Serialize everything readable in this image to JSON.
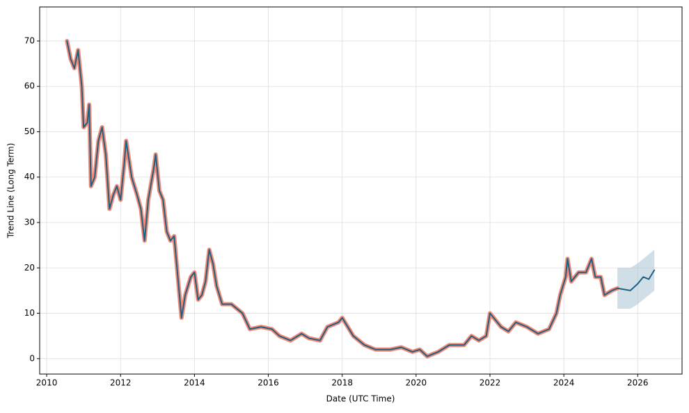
{
  "chart_data": {
    "type": "line",
    "xlabel": "Date (UTC Time)",
    "ylabel": "Trend Line (Long Term)",
    "x": [
      2010.55,
      2010.65,
      2010.75,
      2010.85,
      2010.95,
      2011.0,
      2011.1,
      2011.15,
      2011.2,
      2011.3,
      2011.4,
      2011.5,
      2011.6,
      2011.7,
      2011.8,
      2011.9,
      2012.0,
      2012.1,
      2012.15,
      2012.3,
      2012.45,
      2012.55,
      2012.65,
      2012.75,
      2012.9,
      2012.95,
      2013.05,
      2013.15,
      2013.25,
      2013.35,
      2013.45,
      2013.55,
      2013.65,
      2013.75,
      2013.9,
      2014.0,
      2014.1,
      2014.2,
      2014.3,
      2014.4,
      2014.5,
      2014.6,
      2014.75,
      2015.0,
      2015.3,
      2015.5,
      2015.8,
      2016.1,
      2016.3,
      2016.6,
      2016.9,
      2017.1,
      2017.4,
      2017.6,
      2017.9,
      2018.0,
      2018.3,
      2018.6,
      2018.9,
      2019.3,
      2019.6,
      2019.9,
      2020.1,
      2020.3,
      2020.6,
      2020.9,
      2021.3,
      2021.5,
      2021.7,
      2021.9,
      2022.0,
      2022.3,
      2022.5,
      2022.7,
      2023.0,
      2023.3,
      2023.6,
      2023.8,
      2023.9,
      2024.05,
      2024.1,
      2024.2,
      2024.4,
      2024.6,
      2024.75,
      2024.85,
      2025.0,
      2025.1,
      2025.3,
      2025.45,
      2025.6,
      2025.8,
      2026.0,
      2026.15,
      2026.3,
      2026.45
    ],
    "series": [
      {
        "color": "#f08a78",
        "width": 6,
        "values": [
          70,
          66,
          64,
          68,
          60,
          51,
          52,
          56,
          38,
          40,
          48,
          51,
          45,
          33,
          36,
          38,
          35,
          43,
          48,
          40,
          36,
          33,
          26,
          35,
          42,
          45,
          37,
          35,
          28,
          26,
          27,
          18,
          9,
          14,
          18,
          19,
          13,
          14,
          17,
          24,
          21,
          16,
          12,
          12,
          10,
          6.5,
          7,
          6.5,
          5,
          4,
          5.5,
          4.5,
          4,
          7,
          8,
          9,
          5,
          3,
          2,
          2,
          2.5,
          1.5,
          2,
          0.5,
          1.5,
          3,
          3,
          5,
          4,
          5,
          10,
          7,
          6,
          8,
          7,
          5.5,
          6.5,
          10,
          14,
          18,
          22,
          17,
          19,
          19,
          22,
          18,
          18,
          14,
          15,
          15.5,
          null,
          null,
          null,
          null,
          null,
          null
        ]
      },
      {
        "color": "#1f5f80",
        "width": 2,
        "values": [
          70,
          66,
          64,
          68,
          60,
          51,
          52,
          56,
          38,
          40,
          48,
          51,
          45,
          33,
          36,
          38,
          35,
          43,
          48,
          40,
          36,
          33,
          26,
          35,
          42,
          45,
          37,
          35,
          28,
          26,
          27,
          18,
          9,
          14,
          18,
          19,
          13,
          14,
          17,
          24,
          21,
          16,
          12,
          12,
          10,
          6.5,
          7,
          6.5,
          5,
          4,
          5.5,
          4.5,
          4,
          7,
          8,
          9,
          5,
          3,
          2,
          2,
          2.5,
          1.5,
          2,
          0.5,
          1.5,
          3,
          3,
          5,
          4,
          5,
          10,
          7,
          6,
          8,
          7,
          5.5,
          6.5,
          10,
          14,
          18,
          22,
          17,
          19,
          19,
          22,
          18,
          18,
          14,
          15,
          15.5,
          15.3,
          15,
          16.5,
          18,
          17.5,
          19.5
        ]
      }
    ],
    "band": {
      "color": "#a9c3d4",
      "lower": [
        null,
        null,
        null,
        null,
        null,
        null,
        null,
        null,
        null,
        null,
        null,
        null,
        null,
        null,
        null,
        null,
        null,
        null,
        null,
        null,
        null,
        null,
        null,
        null,
        null,
        null,
        null,
        null,
        null,
        null,
        null,
        null,
        null,
        null,
        null,
        null,
        null,
        null,
        null,
        null,
        null,
        null,
        null,
        null,
        null,
        null,
        null,
        null,
        null,
        null,
        null,
        null,
        null,
        null,
        null,
        null,
        null,
        null,
        null,
        null,
        null,
        null,
        null,
        null,
        null,
        null,
        null,
        null,
        null,
        null,
        null,
        null,
        null,
        null,
        null,
        null,
        null,
        null,
        null,
        null,
        null,
        null,
        null,
        null,
        null,
        null,
        null,
        null,
        null,
        11,
        11,
        11,
        12,
        13,
        14,
        15
      ],
      "upper": [
        null,
        null,
        null,
        null,
        null,
        null,
        null,
        null,
        null,
        null,
        null,
        null,
        null,
        null,
        null,
        null,
        null,
        null,
        null,
        null,
        null,
        null,
        null,
        null,
        null,
        null,
        null,
        null,
        null,
        null,
        null,
        null,
        null,
        null,
        null,
        null,
        null,
        null,
        null,
        null,
        null,
        null,
        null,
        null,
        null,
        null,
        null,
        null,
        null,
        null,
        null,
        null,
        null,
        null,
        null,
        null,
        null,
        null,
        null,
        null,
        null,
        null,
        null,
        null,
        null,
        null,
        null,
        null,
        null,
        null,
        null,
        null,
        null,
        null,
        null,
        null,
        null,
        null,
        null,
        null,
        null,
        null,
        null,
        null,
        null,
        null,
        null,
        null,
        null,
        20,
        20,
        20,
        21,
        22,
        23,
        24
      ]
    },
    "xlim": [
      2009.81,
      2027.2
    ],
    "xticks": [
      2010,
      2012,
      2014,
      2016,
      2018,
      2020,
      2022,
      2024,
      2026
    ],
    "ylim": [
      -3.4,
      77.5
    ],
    "yticks": [
      0,
      10,
      20,
      30,
      40,
      50,
      60,
      70
    ],
    "grid": true
  }
}
